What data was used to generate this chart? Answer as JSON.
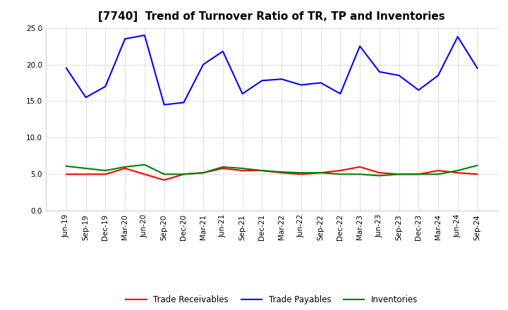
{
  "title": "[7740]  Trend of Turnover Ratio of TR, TP and Inventories",
  "x_labels": [
    "Jun-19",
    "Sep-19",
    "Dec-19",
    "Mar-20",
    "Jun-20",
    "Sep-20",
    "Dec-20",
    "Mar-21",
    "Jun-21",
    "Sep-21",
    "Dec-21",
    "Mar-22",
    "Jun-22",
    "Sep-22",
    "Dec-22",
    "Mar-23",
    "Jun-23",
    "Sep-23",
    "Dec-23",
    "Mar-24",
    "Jun-24",
    "Sep-24"
  ],
  "trade_receivables": [
    5.0,
    5.0,
    5.0,
    5.8,
    5.0,
    4.2,
    5.0,
    5.2,
    5.8,
    5.5,
    5.5,
    5.2,
    5.0,
    5.2,
    5.5,
    6.0,
    5.2,
    5.0,
    5.0,
    5.5,
    5.2,
    5.0
  ],
  "trade_payables": [
    19.5,
    15.5,
    17.0,
    23.5,
    24.0,
    14.5,
    14.8,
    20.0,
    21.8,
    16.0,
    17.8,
    18.0,
    17.2,
    17.5,
    16.0,
    22.5,
    19.0,
    18.5,
    16.5,
    18.5,
    23.8,
    19.5
  ],
  "inventories": [
    6.1,
    5.8,
    5.5,
    6.0,
    6.3,
    5.0,
    5.0,
    5.2,
    6.0,
    5.8,
    5.5,
    5.3,
    5.2,
    5.2,
    5.0,
    5.0,
    4.8,
    5.0,
    5.0,
    5.0,
    5.5,
    6.2
  ],
  "ylim": [
    0.0,
    25.0
  ],
  "yticks": [
    0.0,
    5.0,
    10.0,
    15.0,
    20.0,
    25.0
  ],
  "color_tr": "#ff0000",
  "color_tp": "#0000ff",
  "color_inv": "#008000",
  "bg_color": "#ffffff",
  "grid_color": "#aaaaaa",
  "title_fontsize": 11,
  "tick_fontsize": 7.5,
  "legend_labels": [
    "Trade Receivables",
    "Trade Payables",
    "Inventories"
  ]
}
